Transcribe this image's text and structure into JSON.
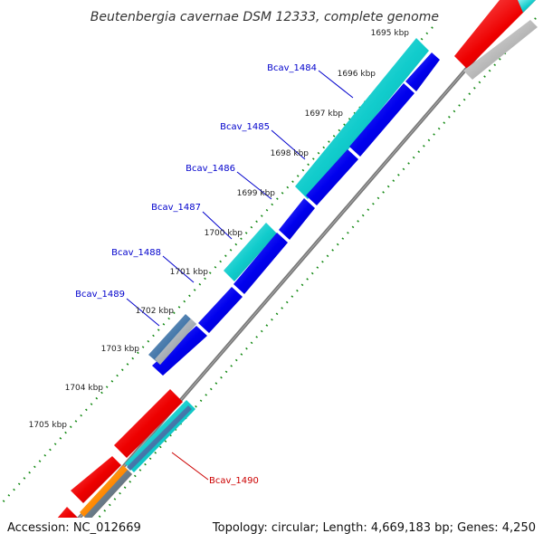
{
  "title": "Beutenbergia cavernae DSM 12333, complete genome",
  "footer": {
    "accession": "Accession: NC_012669",
    "summary": "Topology: circular; Length: 4,669,183 bp; Genes: 4,250"
  },
  "tick_labels": [
    "1695 kbp",
    "1696 kbp",
    "1697 kbp",
    "1698 kbp",
    "1699 kbp",
    "1700 kbp",
    "1701 kbp",
    "1702 kbp",
    "1703 kbp",
    "1704 kbp",
    "1705 kbp"
  ],
  "gene_labels": [
    {
      "name": "Bcav_1484",
      "color": "#0000cc"
    },
    {
      "name": "Bcav_1485",
      "color": "#0000cc"
    },
    {
      "name": "Bcav_1486",
      "color": "#0000cc"
    },
    {
      "name": "Bcav_1487",
      "color": "#0000cc"
    },
    {
      "name": "Bcav_1488",
      "color": "#0000cc"
    },
    {
      "name": "Bcav_1489",
      "color": "#0000cc"
    },
    {
      "name": "Bcav_1490",
      "color": "#cc0000"
    }
  ],
  "colors": {
    "cyan": "#11cccc",
    "blue": "#0000ee",
    "red": "#ee0000",
    "gray": "#bbbbbb",
    "orange": "#ff8800",
    "steel": "#4477aa",
    "green_tick": "#118811",
    "backbone": "#777777"
  }
}
